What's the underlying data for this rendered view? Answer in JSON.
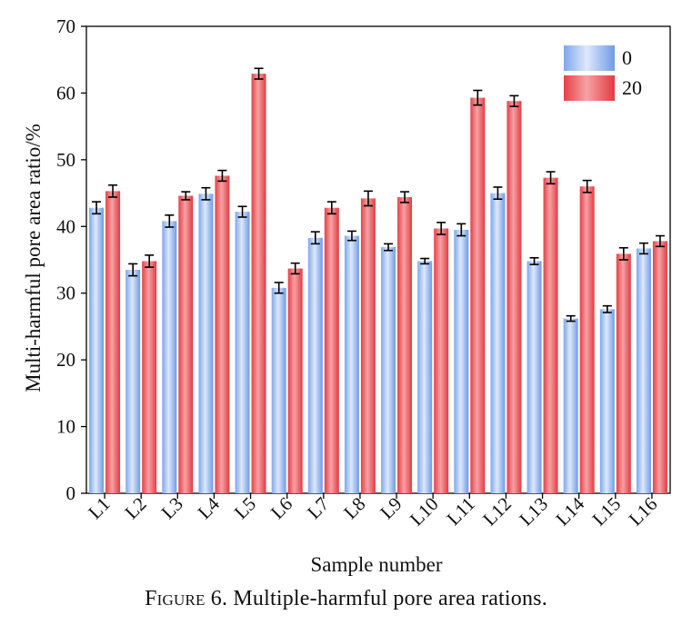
{
  "chart_data": {
    "type": "bar",
    "title": "",
    "xlabel": "Sample number",
    "ylabel": "Multi-harmful pore area ratio/%",
    "ylim": [
      0,
      70
    ],
    "yticks": [
      0,
      10,
      20,
      30,
      40,
      50,
      60,
      70
    ],
    "categories": [
      "L1",
      "L2",
      "L3",
      "L4",
      "L5",
      "L6",
      "L7",
      "L8",
      "L9",
      "L10",
      "L11",
      "L12",
      "L13",
      "L14",
      "L15",
      "L16"
    ],
    "series": [
      {
        "name": "0",
        "color": "#6f9be6",
        "values": [
          42.8,
          33.5,
          40.8,
          44.9,
          42.2,
          30.8,
          38.3,
          38.6,
          36.9,
          34.8,
          39.5,
          45.0,
          34.8,
          26.2,
          27.6,
          36.7
        ],
        "errors": [
          0.9,
          0.9,
          0.9,
          0.9,
          0.8,
          0.8,
          0.9,
          0.7,
          0.5,
          0.4,
          0.9,
          0.9,
          0.5,
          0.4,
          0.5,
          0.8
        ]
      },
      {
        "name": "20",
        "color": "#e8484e",
        "values": [
          45.3,
          34.8,
          44.6,
          47.6,
          62.9,
          33.7,
          42.8,
          44.2,
          44.4,
          39.7,
          59.3,
          58.8,
          47.3,
          46.0,
          35.9,
          37.8
        ]
      }
    ],
    "legend_position": "top-right",
    "grid": false
  },
  "series_errors_20": [
    0.9,
    0.9,
    0.6,
    0.8,
    0.8,
    0.8,
    0.9,
    1.1,
    0.8,
    0.9,
    1.1,
    0.8,
    0.9,
    0.9,
    0.9,
    0.8
  ],
  "caption": {
    "label": "Figure",
    "text": " 6. Multiple-harmful pore area rations."
  }
}
